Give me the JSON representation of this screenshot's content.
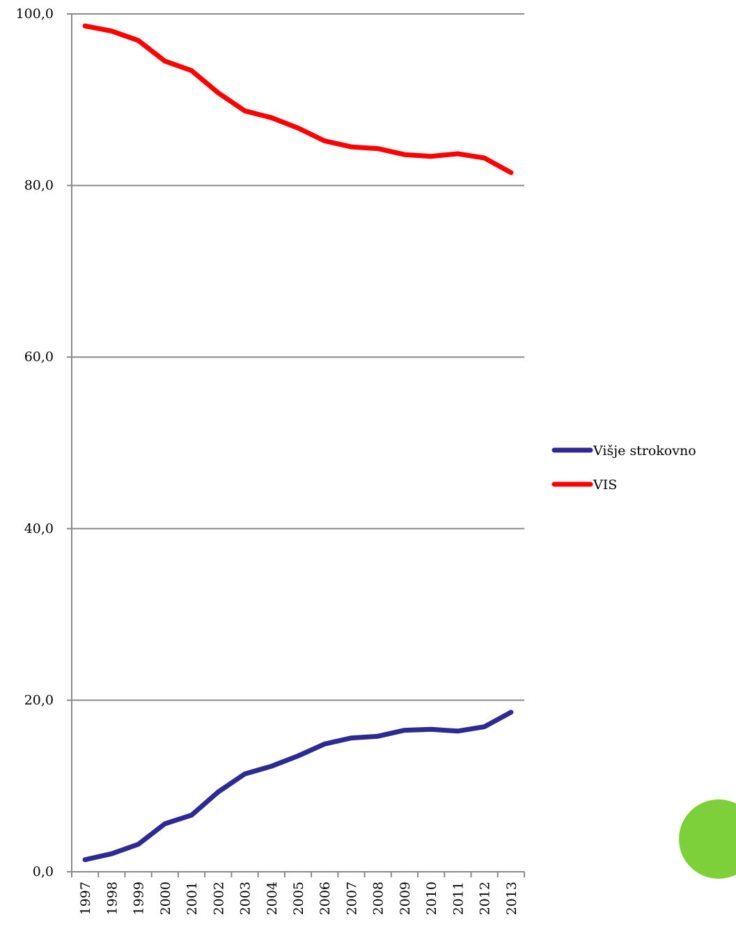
{
  "chart_data": {
    "type": "line",
    "title": "",
    "xlabel": "",
    "ylabel": "",
    "ylim": [
      0,
      100
    ],
    "y_ticks": [
      "0,0",
      "20,0",
      "40,0",
      "60,0",
      "80,0",
      "100,0"
    ],
    "x": [
      "1997",
      "1998",
      "1999",
      "2000",
      "2001",
      "2002",
      "2003",
      "2004",
      "2005",
      "2006",
      "2007",
      "2008",
      "2009",
      "2010",
      "2011",
      "2012",
      "2013"
    ],
    "series": [
      {
        "name": "Višje strokovno",
        "color": "#2e2a94",
        "values": [
          1.4,
          2.1,
          3.2,
          5.6,
          6.6,
          9.3,
          11.4,
          12.3,
          13.5,
          14.9,
          15.6,
          15.8,
          16.5,
          16.6,
          16.4,
          16.9,
          18.6
        ]
      },
      {
        "name": "VIS",
        "color": "#ff0000",
        "values": [
          98.6,
          98.0,
          96.9,
          94.5,
          93.4,
          90.8,
          88.7,
          87.9,
          86.7,
          85.2,
          84.5,
          84.3,
          83.6,
          83.4,
          83.7,
          83.2,
          81.5
        ]
      }
    ],
    "grid": true,
    "legend_position": "right"
  },
  "decoration": {
    "circle_color": "#7ed03b"
  }
}
